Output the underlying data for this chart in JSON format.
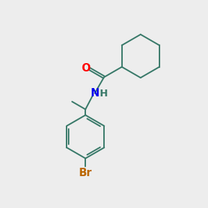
{
  "background_color": "#EDEDED",
  "bond_color": "#3a7a6a",
  "bond_width": 1.5,
  "atom_colors": {
    "O": "#FF0000",
    "N": "#0000EE",
    "H": "#3a7a6a",
    "Br": "#BB6600",
    "C": "#000000"
  },
  "font_size_atoms": 11,
  "font_size_br": 11,
  "font_size_h": 10
}
